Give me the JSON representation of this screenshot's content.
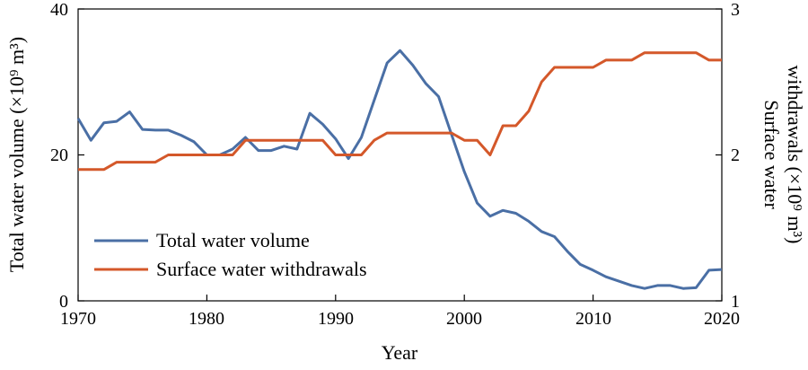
{
  "chart_data": {
    "type": "line",
    "xlabel": "Year",
    "ylabel_left": "Total water volume (×10⁹ m³)",
    "ylabel_right_line1": "Surface water",
    "ylabel_right_line2": "withdrawals (×10⁹ m³)",
    "xlim": [
      1970,
      2020
    ],
    "ylim_left": [
      0,
      40
    ],
    "ylim_right": [
      1,
      3
    ],
    "x_ticks": [
      "1970",
      "1980",
      "1990",
      "2000",
      "2010",
      "2020"
    ],
    "y_left_ticks": [
      "0",
      "20",
      "40"
    ],
    "y_right_ticks": [
      "1",
      "2",
      "3"
    ],
    "grid": false,
    "legend_position": "bottom-left",
    "series": [
      {
        "name": "Total water volume",
        "axis": "left",
        "color": "#4a6fa5",
        "x": [
          1970,
          1971,
          1972,
          1973,
          1974,
          1975,
          1976,
          1977,
          1978,
          1979,
          1980,
          1981,
          1982,
          1983,
          1984,
          1985,
          1986,
          1987,
          1988,
          1989,
          1990,
          1991,
          1992,
          1993,
          1994,
          1995,
          1996,
          1997,
          1998,
          1999,
          2000,
          2001,
          2002,
          2003,
          2004,
          2005,
          2006,
          2007,
          2008,
          2009,
          2010,
          2011,
          2012,
          2013,
          2014,
          2015,
          2016,
          2017,
          2018,
          2019,
          2020
        ],
        "values": [
          25.0,
          22.0,
          24.4,
          24.6,
          25.9,
          23.5,
          23.4,
          23.4,
          22.7,
          21.8,
          20.0,
          20.0,
          20.8,
          22.4,
          20.6,
          20.6,
          21.2,
          20.8,
          25.7,
          24.2,
          22.2,
          19.5,
          22.4,
          27.5,
          32.6,
          34.3,
          32.3,
          29.8,
          28.0,
          22.8,
          17.7,
          13.4,
          11.6,
          12.4,
          12.0,
          10.9,
          9.5,
          8.8,
          6.8,
          5.0,
          4.2,
          3.3,
          2.7,
          2.1,
          1.7,
          2.1,
          2.1,
          1.7,
          1.8,
          4.2,
          4.3
        ]
      },
      {
        "name": "Surface water withdrawals",
        "axis": "right",
        "color": "#d4582a",
        "x": [
          1970,
          1971,
          1972,
          1973,
          1974,
          1975,
          1976,
          1977,
          1978,
          1979,
          1980,
          1981,
          1982,
          1983,
          1984,
          1985,
          1986,
          1987,
          1988,
          1989,
          1990,
          1991,
          1992,
          1993,
          1994,
          1995,
          1996,
          1997,
          1998,
          1999,
          2000,
          2001,
          2002,
          2003,
          2004,
          2005,
          2006,
          2007,
          2008,
          2009,
          2010,
          2011,
          2012,
          2013,
          2014,
          2015,
          2016,
          2017,
          2018,
          2019,
          2020
        ],
        "values": [
          1.9,
          1.9,
          1.9,
          1.95,
          1.95,
          1.95,
          1.95,
          2.0,
          2.0,
          2.0,
          2.0,
          2.0,
          2.0,
          2.1,
          2.1,
          2.1,
          2.1,
          2.1,
          2.1,
          2.1,
          2.0,
          2.0,
          2.0,
          2.1,
          2.15,
          2.15,
          2.15,
          2.15,
          2.15,
          2.15,
          2.1,
          2.1,
          2.0,
          2.2,
          2.2,
          2.3,
          2.5,
          2.6,
          2.6,
          2.6,
          2.6,
          2.65,
          2.65,
          2.65,
          2.7,
          2.7,
          2.7,
          2.7,
          2.7,
          2.65,
          2.65
        ]
      }
    ]
  }
}
